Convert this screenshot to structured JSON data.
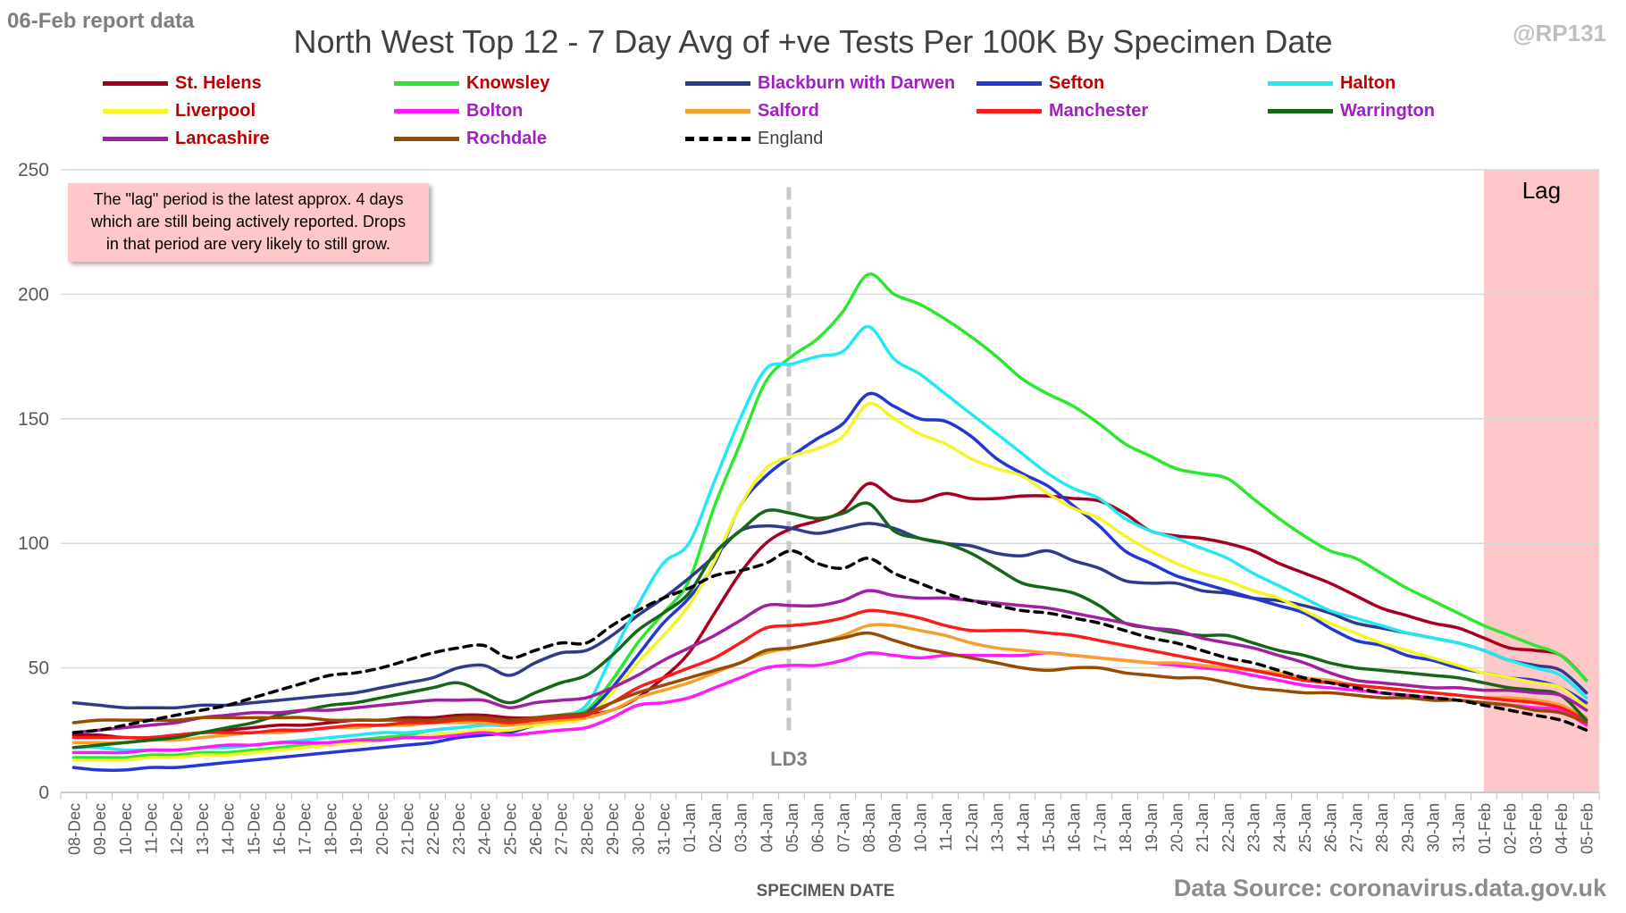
{
  "header": {
    "report_tag": "06-Feb report data",
    "handle": "@RP131",
    "source": "Data Source: coronavirus.data.gov.uk"
  },
  "note": {
    "line1": "The \"lag\" period is the latest approx. 4 days",
    "line2": "which are still being actively reported.  Drops",
    "line3": "in that period are very likely to still grow."
  },
  "colors": {
    "grid": "#d9d9d9",
    "axis_text": "#595959",
    "lag_fill": "#ffc7c7",
    "ld3_line": "#c8c8c8",
    "label_red": "#c00000",
    "label_purple": "#a020c0"
  },
  "chart_data": {
    "type": "line",
    "title": "North West Top 12 - 7 Day Avg of +ve Tests Per 100K By Specimen Date",
    "xlabel": "SPECIMEN DATE",
    "ylabel": "",
    "ylim": [
      0,
      250
    ],
    "yticks": [
      0,
      50,
      100,
      150,
      200,
      250
    ],
    "grid": true,
    "legend": "top",
    "categories": [
      "08-Dec",
      "09-Dec",
      "10-Dec",
      "11-Dec",
      "12-Dec",
      "13-Dec",
      "14-Dec",
      "15-Dec",
      "16-Dec",
      "17-Dec",
      "18-Dec",
      "19-Dec",
      "20-Dec",
      "21-Dec",
      "22-Dec",
      "23-Dec",
      "24-Dec",
      "25-Dec",
      "26-Dec",
      "27-Dec",
      "28-Dec",
      "29-Dec",
      "30-Dec",
      "31-Dec",
      "01-Jan",
      "02-Jan",
      "03-Jan",
      "04-Jan",
      "05-Jan",
      "06-Jan",
      "07-Jan",
      "08-Jan",
      "09-Jan",
      "10-Jan",
      "11-Jan",
      "12-Jan",
      "13-Jan",
      "14-Jan",
      "15-Jan",
      "16-Jan",
      "17-Jan",
      "18-Jan",
      "19-Jan",
      "20-Jan",
      "21-Jan",
      "22-Jan",
      "23-Jan",
      "24-Jan",
      "25-Jan",
      "26-Jan",
      "27-Jan",
      "28-Jan",
      "29-Jan",
      "30-Jan",
      "31-Jan",
      "01-Feb",
      "02-Feb",
      "03-Feb",
      "04-Feb",
      "05-Feb"
    ],
    "annotations": {
      "vline": {
        "label": "LD3",
        "at": "05-Jan"
      },
      "lag": {
        "label": "Lag",
        "from": "01-Feb",
        "to": "05-Feb"
      }
    },
    "series": [
      {
        "name": "St. Helens",
        "color": "#a50021",
        "label_color": "#c00000",
        "dashed": false,
        "values": [
          23,
          23,
          22,
          22,
          23,
          24,
          25,
          26,
          27,
          27,
          28,
          29,
          29,
          30,
          30,
          31,
          31,
          30,
          30,
          31,
          31,
          33,
          38,
          46,
          56,
          72,
          88,
          100,
          106,
          109,
          113,
          124,
          118,
          117,
          120,
          118,
          118,
          119,
          119,
          118,
          117,
          112,
          105,
          103,
          102,
          100,
          97,
          92,
          88,
          84,
          79,
          74,
          71,
          68,
          66,
          62,
          58,
          57,
          55,
          45
        ]
      },
      {
        "name": "Knowsley",
        "color": "#2ce82c",
        "label_color": "#c00000",
        "dashed": false,
        "values": [
          14,
          14,
          14,
          15,
          15,
          16,
          16,
          17,
          18,
          19,
          20,
          21,
          22,
          23,
          25,
          26,
          27,
          27,
          29,
          31,
          33,
          45,
          60,
          72,
          85,
          115,
          140,
          165,
          175,
          182,
          193,
          208,
          200,
          196,
          190,
          183,
          175,
          166,
          160,
          155,
          148,
          140,
          135,
          130,
          128,
          126,
          118,
          110,
          103,
          97,
          94,
          88,
          82,
          77,
          72,
          67,
          63,
          59,
          55,
          45
        ]
      },
      {
        "name": "Blackburn with Darwen",
        "color": "#2e3b8c",
        "label_color": "#a020c0",
        "dashed": false,
        "values": [
          36,
          35,
          34,
          34,
          34,
          35,
          35,
          36,
          37,
          38,
          39,
          40,
          42,
          44,
          46,
          50,
          51,
          47,
          52,
          56,
          57,
          63,
          71,
          78,
          86,
          95,
          105,
          107,
          106,
          104,
          106,
          108,
          106,
          102,
          100,
          99,
          96,
          95,
          97,
          93,
          90,
          85,
          84,
          84,
          81,
          80,
          78,
          77,
          75,
          72,
          68,
          66,
          64,
          62,
          60,
          57,
          53,
          51,
          49,
          40
        ]
      },
      {
        "name": "Sefton",
        "color": "#2436d6",
        "label_color": "#c00000",
        "dashed": false,
        "values": [
          10,
          9,
          9,
          10,
          10,
          11,
          12,
          13,
          14,
          15,
          16,
          17,
          18,
          19,
          20,
          22,
          23,
          24,
          27,
          29,
          32,
          42,
          55,
          68,
          78,
          92,
          115,
          127,
          135,
          142,
          148,
          160,
          155,
          150,
          149,
          143,
          134,
          128,
          123,
          115,
          107,
          97,
          92,
          87,
          84,
          81,
          78,
          75,
          72,
          66,
          61,
          59,
          55,
          53,
          50,
          48,
          46,
          45,
          42,
          36
        ]
      },
      {
        "name": "Halton",
        "color": "#22e8f2",
        "label_color": "#c00000",
        "dashed": false,
        "values": [
          18,
          18,
          17,
          17,
          17,
          18,
          18,
          19,
          20,
          21,
          22,
          23,
          24,
          24,
          25,
          26,
          27,
          27,
          29,
          31,
          35,
          55,
          75,
          92,
          100,
          125,
          150,
          170,
          172,
          175,
          177,
          187,
          174,
          168,
          160,
          152,
          144,
          136,
          128,
          122,
          118,
          110,
          105,
          102,
          98,
          94,
          88,
          83,
          78,
          73,
          70,
          67,
          64,
          62,
          60,
          57,
          53,
          50,
          47,
          38
        ]
      },
      {
        "name": "Liverpool",
        "color": "#f5f52a",
        "label_color": "#c00000",
        "dashed": false,
        "values": [
          13,
          13,
          13,
          14,
          14,
          15,
          15,
          16,
          17,
          18,
          19,
          20,
          21,
          22,
          23,
          24,
          25,
          25,
          27,
          28,
          30,
          40,
          52,
          63,
          75,
          93,
          115,
          130,
          135,
          138,
          143,
          156,
          150,
          144,
          140,
          134,
          130,
          127,
          120,
          114,
          110,
          103,
          97,
          92,
          88,
          85,
          81,
          78,
          73,
          68,
          64,
          60,
          57,
          54,
          51,
          48,
          46,
          44,
          42,
          34
        ]
      },
      {
        "name": "Bolton",
        "color": "#ff1aff",
        "label_color": "#a020c0",
        "dashed": false,
        "values": [
          16,
          16,
          16,
          17,
          17,
          18,
          19,
          19,
          20,
          20,
          20,
          21,
          21,
          22,
          22,
          23,
          24,
          23,
          24,
          25,
          26,
          30,
          35,
          36,
          38,
          42,
          46,
          50,
          51,
          51,
          53,
          56,
          55,
          54,
          55,
          55,
          55,
          55,
          56,
          55,
          54,
          53,
          52,
          51,
          50,
          49,
          47,
          45,
          43,
          42,
          41,
          40,
          39,
          38,
          37,
          36,
          35,
          34,
          33,
          27
        ]
      },
      {
        "name": "Salford",
        "color": "#f5a02a",
        "label_color": "#a020c0",
        "dashed": false,
        "values": [
          20,
          20,
          20,
          21,
          21,
          22,
          23,
          24,
          24,
          25,
          26,
          26,
          27,
          27,
          28,
          28,
          28,
          27,
          28,
          29,
          30,
          33,
          38,
          41,
          44,
          48,
          52,
          56,
          58,
          60,
          63,
          67,
          67,
          65,
          63,
          60,
          58,
          57,
          56,
          55,
          54,
          53,
          52,
          52,
          51,
          50,
          49,
          48,
          46,
          45,
          43,
          42,
          41,
          40,
          39,
          38,
          38,
          37,
          35,
          30
        ]
      },
      {
        "name": "Manchester",
        "color": "#ff1a1a",
        "label_color": "#a020c0",
        "dashed": false,
        "values": [
          22,
          22,
          22,
          22,
          23,
          24,
          24,
          24,
          25,
          25,
          26,
          27,
          27,
          28,
          28,
          29,
          29,
          28,
          29,
          30,
          31,
          36,
          42,
          46,
          50,
          54,
          60,
          66,
          67,
          68,
          70,
          73,
          72,
          70,
          67,
          65,
          65,
          65,
          64,
          63,
          61,
          59,
          57,
          55,
          53,
          51,
          49,
          47,
          45,
          44,
          43,
          42,
          41,
          40,
          39,
          38,
          37,
          36,
          34,
          29
        ]
      },
      {
        "name": "Warrington",
        "color": "#156615",
        "label_color": "#a020c0",
        "dashed": false,
        "values": [
          18,
          19,
          20,
          21,
          22,
          24,
          26,
          28,
          31,
          33,
          35,
          36,
          38,
          40,
          42,
          44,
          40,
          36,
          40,
          44,
          47,
          55,
          65,
          72,
          80,
          96,
          105,
          113,
          112,
          110,
          112,
          116,
          105,
          102,
          100,
          96,
          90,
          84,
          82,
          80,
          75,
          68,
          66,
          64,
          63,
          63,
          60,
          57,
          55,
          52,
          50,
          49,
          48,
          47,
          46,
          44,
          42,
          41,
          39,
          29
        ]
      },
      {
        "name": "Lancashire",
        "color": "#a020a0",
        "label_color": "#c00000",
        "dashed": false,
        "values": [
          24,
          25,
          26,
          27,
          28,
          30,
          31,
          32,
          32,
          33,
          33,
          34,
          35,
          36,
          37,
          37,
          37,
          34,
          36,
          37,
          38,
          42,
          47,
          53,
          58,
          63,
          69,
          75,
          75,
          75,
          77,
          81,
          79,
          78,
          78,
          77,
          76,
          75,
          74,
          72,
          70,
          68,
          66,
          65,
          62,
          60,
          58,
          55,
          52,
          48,
          45,
          44,
          43,
          42,
          42,
          41,
          41,
          40,
          39,
          33
        ]
      },
      {
        "name": "Rochdale",
        "color": "#964b00",
        "label_color": "#a020c0",
        "dashed": false,
        "values": [
          28,
          29,
          29,
          29,
          29,
          30,
          30,
          30,
          30,
          30,
          29,
          29,
          29,
          29,
          29,
          30,
          30,
          29,
          30,
          31,
          32,
          36,
          40,
          43,
          46,
          49,
          52,
          57,
          58,
          60,
          62,
          64,
          61,
          58,
          56,
          54,
          52,
          50,
          49,
          50,
          50,
          48,
          47,
          46,
          46,
          44,
          42,
          41,
          40,
          40,
          39,
          38,
          38,
          37,
          37,
          36,
          35,
          33,
          32,
          28
        ]
      },
      {
        "name": "England",
        "color": "#000000",
        "label_color": "#404040",
        "dashed": true,
        "values": [
          24,
          25,
          27,
          29,
          31,
          33,
          35,
          38,
          41,
          44,
          47,
          48,
          50,
          53,
          56,
          58,
          59,
          54,
          57,
          60,
          60,
          67,
          73,
          78,
          82,
          87,
          89,
          92,
          97,
          92,
          90,
          94,
          88,
          84,
          80,
          77,
          75,
          73,
          72,
          70,
          68,
          65,
          62,
          60,
          57,
          54,
          52,
          49,
          46,
          44,
          42,
          40,
          39,
          38,
          37,
          35,
          33,
          31,
          29,
          25
        ]
      }
    ]
  }
}
